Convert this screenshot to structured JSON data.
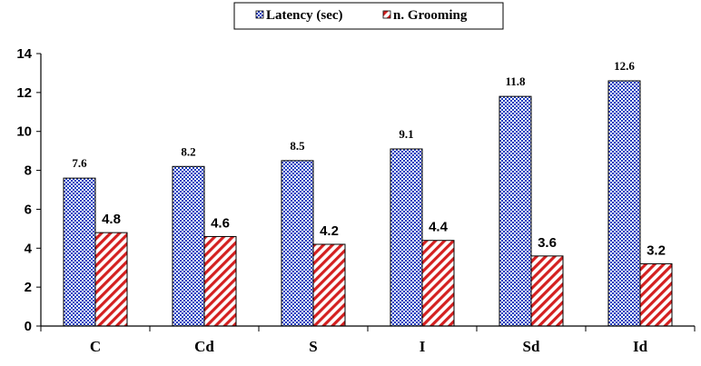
{
  "chart_data": {
    "type": "bar",
    "categories": [
      "C",
      "Cd",
      "S",
      "I",
      "Sd",
      "Id"
    ],
    "series": [
      {
        "name": "Latency (sec)",
        "values": [
          7.6,
          8.2,
          8.5,
          9.1,
          11.8,
          12.6
        ],
        "pattern": "blue-checker"
      },
      {
        "name": "n. Grooming",
        "values": [
          4.8,
          4.6,
          4.2,
          4.4,
          3.6,
          3.2
        ],
        "pattern": "red-diagonal"
      }
    ],
    "data_labels": [
      [
        "7.6",
        "8.2",
        "8.5",
        "9.1",
        "11.8",
        "12.6"
      ],
      [
        "4.8",
        "4.6",
        "4.2",
        "4.4",
        "3.6",
        "3.2"
      ]
    ],
    "ylim": [
      0,
      14
    ],
    "yticks": [
      0,
      2,
      4,
      6,
      8,
      10,
      12,
      14
    ],
    "grid": false,
    "legend_position": "top-center",
    "colors": {
      "latency": "#1f3fbf",
      "grooming": "#d42020",
      "axis": "#000000"
    }
  }
}
